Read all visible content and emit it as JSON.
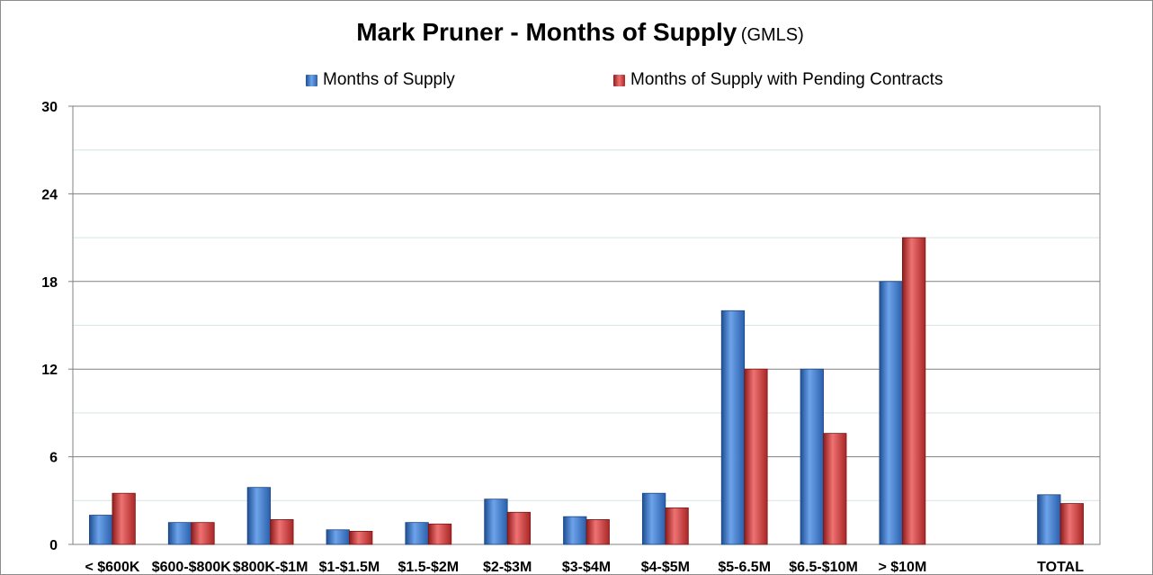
{
  "chart_data": {
    "type": "bar",
    "title": "Mark Pruner - Months of Supply",
    "subtitle": "(GMLS)",
    "xlabel": "",
    "ylabel": "",
    "ylim": [
      0,
      30
    ],
    "yticks": [
      0,
      6,
      12,
      18,
      24,
      30
    ],
    "grid": true,
    "legend_position": "top",
    "categories": [
      "< $600K",
      "$600-$800K",
      "$800K-$1M",
      "$1-$1.5M",
      "$1.5-$2M",
      "$2-$3M",
      "$3-$4M",
      "$4-$5M",
      "$5-6.5M",
      "$6.5-$10M",
      "> $10M",
      "",
      "TOTAL"
    ],
    "series": [
      {
        "name": "Months of Supply",
        "color": "#3d7ccf",
        "values": [
          2.0,
          1.5,
          3.9,
          1.0,
          1.5,
          3.1,
          1.9,
          3.5,
          16.0,
          12.0,
          18.0,
          null,
          3.4
        ]
      },
      {
        "name": "Months of Supply with Pending Contracts",
        "color": "#d23a3a",
        "values": [
          3.5,
          1.5,
          1.7,
          0.9,
          1.4,
          2.2,
          1.7,
          2.5,
          12.0,
          7.6,
          21.0,
          null,
          2.8
        ]
      }
    ]
  }
}
